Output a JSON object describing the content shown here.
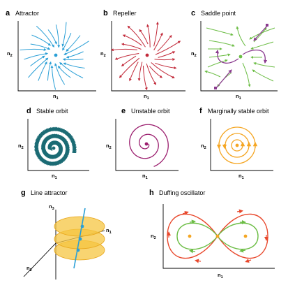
{
  "colors": {
    "attractor": "#2a9fd6",
    "repeller": "#c22a3a",
    "saddle_flow": "#6cbd45",
    "saddle_manifold": "#8a3a8e",
    "stable_orbit": "#1b6b74",
    "unstable_orbit": "#9b1e6e",
    "marginal_orbit": "#f5a623",
    "line_attractor_disk": "#f5c542",
    "line_attractor_line": "#2a9fd6",
    "duffing_outer": "#e8472b",
    "duffing_inner": "#6cbd45",
    "duffing_points": "#f5a623"
  },
  "panels": [
    {
      "id": "a",
      "letter": "a",
      "title": "Attractor",
      "x_axis": {
        "base": "n",
        "sub": "1"
      },
      "y_axis": {
        "base": "n",
        "sub": "2"
      }
    },
    {
      "id": "b",
      "letter": "b",
      "title": "Repeller",
      "x_axis": {
        "base": "n",
        "sub": "1"
      },
      "y_axis": {
        "base": "n",
        "sub": "2"
      }
    },
    {
      "id": "c",
      "letter": "c",
      "title": "Saddle point",
      "x_axis": {
        "base": "n",
        "sub": "1"
      },
      "y_axis": {
        "base": "n",
        "sub": "2"
      }
    },
    {
      "id": "d",
      "letter": "d",
      "title": "Stable orbit",
      "x_axis": {
        "base": "n",
        "sub": "1"
      },
      "y_axis": {
        "base": "n",
        "sub": "2"
      }
    },
    {
      "id": "e",
      "letter": "e",
      "title": "Unstable orbit",
      "x_axis": {
        "base": "n",
        "sub": "1"
      },
      "y_axis": {
        "base": "n",
        "sub": "2"
      }
    },
    {
      "id": "f",
      "letter": "f",
      "title": "Marginally stable orbit",
      "x_axis": {
        "base": "n",
        "sub": "1"
      },
      "y_axis": {
        "base": "n",
        "sub": "2"
      }
    },
    {
      "id": "g",
      "letter": "g",
      "title": "Line attractor",
      "x_axis": {
        "base": "n",
        "sub": "1"
      },
      "y_axis": {
        "base": "n",
        "sub": "2"
      },
      "z_axis": {
        "base": "n",
        "sub": "3"
      }
    },
    {
      "id": "h",
      "letter": "h",
      "title": "Duffing oscillator",
      "x_axis": {
        "base": "n",
        "sub": "1"
      },
      "y_axis": {
        "base": "n",
        "sub": "2"
      }
    }
  ]
}
